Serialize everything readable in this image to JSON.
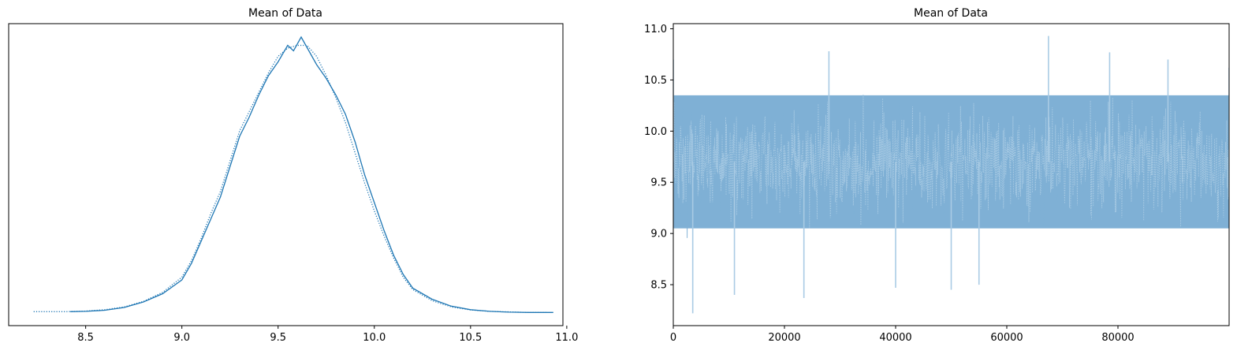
{
  "chart_data": [
    {
      "type": "line",
      "title": "Mean of Data",
      "xlabel": "",
      "ylabel": "",
      "xlim": [
        8.1,
        10.98
      ],
      "ylim": [
        0,
        1.0
      ],
      "x_ticks": [
        "8.5",
        "9.0",
        "9.5",
        "10.0",
        "10.5",
        "11.0"
      ],
      "x_tick_values": [
        8.5,
        9.0,
        9.5,
        10.0,
        10.5,
        11.0
      ],
      "y_ticks": [],
      "grid": false,
      "legend": "none",
      "line_color": "#1f77b4",
      "series": [
        {
          "style": "solid",
          "x": [
            8.42,
            8.5,
            8.6,
            8.7,
            8.8,
            8.9,
            9.0,
            9.05,
            9.1,
            9.15,
            9.2,
            9.25,
            9.3,
            9.35,
            9.4,
            9.45,
            9.5,
            9.55,
            9.58,
            9.62,
            9.66,
            9.7,
            9.75,
            9.8,
            9.85,
            9.9,
            9.95,
            10.0,
            10.05,
            10.1,
            10.15,
            10.2,
            10.3,
            10.4,
            10.5,
            10.6,
            10.7,
            10.8,
            10.93
          ],
          "y": [
            0.005,
            0.006,
            0.01,
            0.02,
            0.04,
            0.07,
            0.12,
            0.18,
            0.26,
            0.34,
            0.42,
            0.53,
            0.64,
            0.71,
            0.79,
            0.86,
            0.91,
            0.97,
            0.95,
            1.0,
            0.95,
            0.9,
            0.85,
            0.79,
            0.72,
            0.62,
            0.5,
            0.4,
            0.3,
            0.21,
            0.14,
            0.09,
            0.05,
            0.025,
            0.012,
            0.006,
            0.003,
            0.002,
            0.002
          ]
        },
        {
          "style": "dotted",
          "x": [
            8.23,
            8.4,
            8.5,
            8.6,
            8.7,
            8.8,
            8.9,
            9.0,
            9.05,
            9.1,
            9.15,
            9.2,
            9.25,
            9.3,
            9.35,
            9.4,
            9.45,
            9.5,
            9.55,
            9.6,
            9.65,
            9.7,
            9.75,
            9.8,
            9.85,
            9.9,
            9.95,
            10.0,
            10.05,
            10.1,
            10.15,
            10.2,
            10.3,
            10.4,
            10.5,
            10.6,
            10.8,
            10.9
          ],
          "y": [
            0.005,
            0.005,
            0.007,
            0.012,
            0.022,
            0.042,
            0.075,
            0.13,
            0.19,
            0.27,
            0.36,
            0.44,
            0.55,
            0.66,
            0.73,
            0.8,
            0.87,
            0.93,
            0.96,
            0.97,
            0.97,
            0.93,
            0.86,
            0.78,
            0.69,
            0.58,
            0.47,
            0.37,
            0.28,
            0.2,
            0.13,
            0.085,
            0.045,
            0.022,
            0.011,
            0.006,
            0.002,
            0.002
          ]
        }
      ]
    },
    {
      "type": "line",
      "title": "Mean of Data",
      "xlabel": "",
      "ylabel": "",
      "xlim": [
        0,
        99999
      ],
      "ylim": [
        8.1,
        11.05
      ],
      "x_ticks": [
        "0",
        "20000",
        "40000",
        "60000",
        "80000"
      ],
      "x_tick_values": [
        0,
        20000,
        40000,
        60000,
        80000
      ],
      "y_ticks": [
        "8.5",
        "9.0",
        "9.5",
        "10.0",
        "10.5",
        "11.0"
      ],
      "y_tick_values": [
        8.5,
        9.0,
        9.5,
        10.0,
        10.5,
        11.0
      ],
      "grid": false,
      "legend": "none",
      "fill_color": "#7fb0d5",
      "trace_color": "#a9cbe4",
      "band_range": [
        9.05,
        10.35
      ],
      "series": [
        {
          "name": "",
          "style": "solid",
          "iterations": [
            0,
            3500,
            11000,
            23500,
            28000,
            40000,
            50000,
            55000,
            67500,
            78500,
            89000,
            99999
          ],
          "values": [
            10.7,
            8.22,
            8.4,
            8.37,
            10.78,
            8.47,
            8.45,
            8.5,
            10.93,
            10.77,
            10.7,
            10.62
          ]
        }
      ]
    }
  ]
}
